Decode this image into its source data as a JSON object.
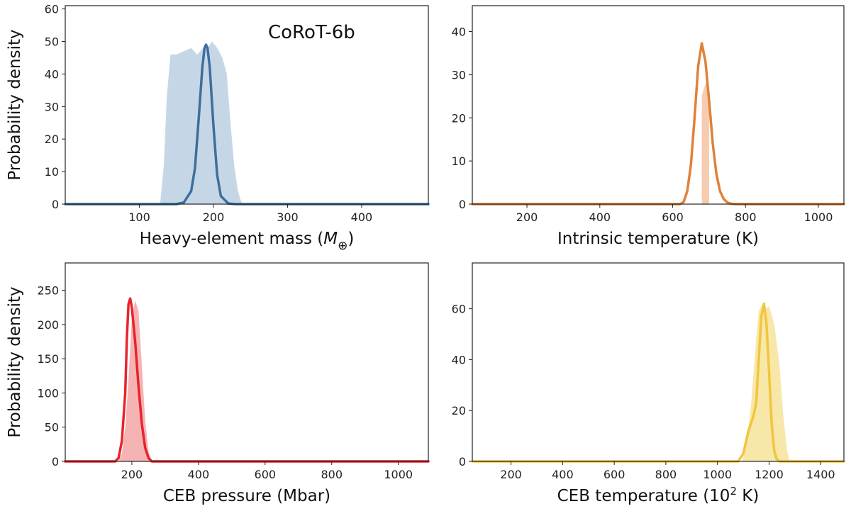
{
  "figure_title": "CoRoT-6b",
  "chart_data": [
    {
      "id": "heavy-element-mass",
      "type": "area",
      "xlabel": "Heavy-element mass",
      "xlabel_symbol": "M",
      "xlabel_subscript": "⊕",
      "ylabel": "Probability density",
      "annotation": "CoRoT-6b",
      "xlim": [
        0,
        490
      ],
      "ylim": [
        0,
        61
      ],
      "xticks": [
        100,
        200,
        300,
        400
      ],
      "yticks": [
        0,
        10,
        20,
        30,
        40,
        50,
        60
      ],
      "color": "#3e6f9c",
      "fill_color": "#c5d7e7",
      "series": [
        {
          "name": "filled distribution",
          "kind": "fill",
          "x": [
            128,
            133,
            137,
            142,
            150,
            160,
            170,
            178,
            186,
            192,
            198,
            205,
            212,
            218,
            223,
            228,
            233,
            237,
            240
          ],
          "y": [
            0,
            12,
            33,
            46,
            46,
            47,
            48,
            46,
            48,
            48,
            50,
            48,
            45,
            40,
            25,
            12,
            4,
            1,
            0
          ]
        },
        {
          "name": "line distribution",
          "kind": "line",
          "x": [
            0,
            150,
            160,
            170,
            175,
            180,
            185,
            188,
            190,
            192,
            195,
            200,
            205,
            210,
            220,
            230,
            490
          ],
          "y": [
            0,
            0,
            0.5,
            4,
            11,
            26,
            42,
            48,
            49,
            48,
            42,
            24,
            9,
            2.5,
            0.2,
            0,
            0
          ]
        }
      ]
    },
    {
      "id": "intrinsic-temperature",
      "type": "area",
      "xlabel": "Intrinsic temperature (K)",
      "ylabel": "",
      "xlim": [
        50,
        1070
      ],
      "ylim": [
        0,
        46
      ],
      "xticks": [
        200,
        400,
        600,
        800,
        1000
      ],
      "yticks": [
        0,
        10,
        20,
        30,
        40
      ],
      "color": "#e0813a",
      "fill_color": "#f6ccb0",
      "series": [
        {
          "name": "filled distribution",
          "kind": "fill",
          "x": [
            680,
            680,
            690,
            700,
            700
          ],
          "y": [
            0,
            25,
            28,
            27,
            0
          ]
        },
        {
          "name": "line distribution",
          "kind": "line",
          "x": [
            50,
            620,
            630,
            640,
            650,
            660,
            670,
            680,
            690,
            700,
            710,
            720,
            730,
            740,
            750,
            760,
            770,
            1070
          ],
          "y": [
            0,
            0,
            0.5,
            3,
            9,
            20,
            32,
            37.3,
            33,
            24,
            14,
            7,
            3,
            1.2,
            0.4,
            0.1,
            0,
            0
          ]
        }
      ]
    },
    {
      "id": "ceb-pressure",
      "type": "area",
      "xlabel": "CEB pressure (Mbar)",
      "ylabel": "Probability density",
      "xlim": [
        0,
        1090
      ],
      "ylim": [
        0,
        290
      ],
      "xticks": [
        200,
        400,
        600,
        800,
        1000
      ],
      "yticks": [
        0,
        50,
        100,
        150,
        200,
        250
      ],
      "color": "#e8242b",
      "fill_color": "#f6b3b4",
      "series": [
        {
          "name": "filled distribution",
          "kind": "fill",
          "x": [
            160,
            170,
            180,
            190,
            200,
            210,
            220,
            230,
            240,
            250,
            260
          ],
          "y": [
            0,
            12,
            50,
            120,
            210,
            235,
            220,
            140,
            60,
            15,
            0
          ]
        },
        {
          "name": "line distribution",
          "kind": "line",
          "x": [
            0,
            150,
            160,
            170,
            180,
            185,
            190,
            195,
            200,
            210,
            220,
            230,
            240,
            250,
            260,
            1090
          ],
          "y": [
            0,
            0,
            5,
            30,
            100,
            180,
            230,
            238,
            225,
            175,
            110,
            55,
            20,
            5,
            0,
            0
          ]
        }
      ]
    },
    {
      "id": "ceb-temperature",
      "type": "area",
      "xlabel": "CEB temperature (10",
      "xlabel_superscript": "2",
      "xlabel_suffix": "K)",
      "ylabel": "",
      "xlim": [
        50,
        1490
      ],
      "ylim": [
        0,
        78
      ],
      "xticks": [
        200,
        400,
        600,
        800,
        1000,
        1200,
        1400
      ],
      "yticks": [
        0,
        20,
        40,
        60
      ],
      "color": "#f2c53d",
      "fill_color": "#f7e7a8",
      "series": [
        {
          "name": "filled distribution",
          "kind": "fill",
          "x": [
            1095,
            1110,
            1130,
            1150,
            1160,
            1170,
            1185,
            1200,
            1220,
            1240,
            1255,
            1270,
            1280
          ],
          "y": [
            0,
            5,
            22,
            48,
            59,
            61,
            60,
            61,
            54,
            38,
            18,
            4,
            0
          ]
        },
        {
          "name": "line distribution",
          "kind": "line",
          "x": [
            50,
            1080,
            1100,
            1120,
            1140,
            1150,
            1160,
            1170,
            1180,
            1190,
            1200,
            1210,
            1220,
            1230,
            1240,
            1490
          ],
          "y": [
            0,
            0,
            3,
            12,
            18,
            23,
            40,
            57,
            62,
            54,
            35,
            15,
            4,
            0.8,
            0,
            0
          ]
        }
      ]
    }
  ]
}
